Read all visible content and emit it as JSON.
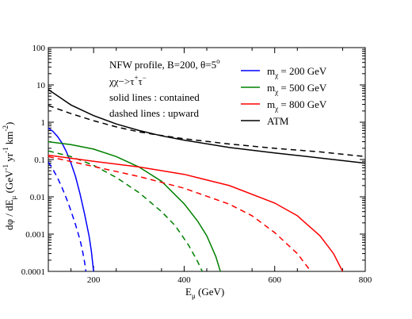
{
  "chart_data": {
    "type": "line",
    "title": "",
    "xlabel": {
      "main": "E",
      "sub": "μ",
      "tail": " (GeV)"
    },
    "ylabel": {
      "t1": "dφ / dE",
      "t2": "μ",
      "t3": " (GeV",
      "t4": "-1",
      "t5": " yr",
      "t6": "-1",
      "t7": " km",
      "t8": "-2",
      "t9": ")"
    },
    "xlim": [
      100,
      800
    ],
    "ylim": [
      0.0001,
      100
    ],
    "yscale": "log",
    "x_ticks": [
      {
        "value": 200,
        "label": "200"
      },
      {
        "value": 400,
        "label": "400"
      },
      {
        "value": 600,
        "label": "600"
      },
      {
        "value": 800,
        "label": "800"
      }
    ],
    "y_ticks": [
      {
        "value": 0.0001,
        "label": "0.0001"
      },
      {
        "value": 0.001,
        "label": "0.001"
      },
      {
        "value": 0.01,
        "label": "0.01"
      },
      {
        "value": 0.1,
        "label": "0.1"
      },
      {
        "value": 1,
        "label": "1"
      },
      {
        "value": 10,
        "label": "10"
      },
      {
        "value": 100,
        "label": "100"
      }
    ],
    "annotations": {
      "line1": "NFW profile, B=200, θ=5",
      "line1_sup": "o",
      "line2_base": "χχ−>τ",
      "line2_sup1": "+",
      "line2_mid": "τ",
      "line2_sup2": "−",
      "line3": "solid lines : contained",
      "line4": "dashed lines : upward"
    },
    "legend_position": "top-right",
    "legend": [
      {
        "pre": "m",
        "sub": "χ",
        "post": " = 200 GeV",
        "color": "#0000ff",
        "series_key": "m200"
      },
      {
        "pre": "m",
        "sub": "χ",
        "post": " = 500 GeV",
        "color": "#008000",
        "series_key": "m500"
      },
      {
        "pre": "m",
        "sub": "χ",
        "post": " = 800 GeV",
        "color": "#ff0000",
        "series_key": "m800"
      },
      {
        "pre": "ATM",
        "sub": "",
        "post": "",
        "color": "#000000",
        "series_key": "atm"
      }
    ],
    "series": [
      {
        "key": "m200",
        "style": "solid",
        "color": "#0000ff",
        "x": [
          100,
          110,
          120,
          130,
          140,
          150,
          160,
          170,
          180,
          190,
          195,
          200
        ],
        "y": [
          0.7,
          0.57,
          0.42,
          0.28,
          0.16,
          0.08,
          0.035,
          0.012,
          0.0035,
          0.0009,
          0.00035,
          0.0001
        ]
      },
      {
        "key": "m200",
        "style": "dashed",
        "color": "#0000ff",
        "x": [
          100,
          110,
          120,
          130,
          140,
          150,
          160,
          170,
          175,
          180,
          183
        ],
        "y": [
          0.085,
          0.055,
          0.033,
          0.018,
          0.009,
          0.0042,
          0.0018,
          0.0007,
          0.00038,
          0.00018,
          0.0001
        ]
      },
      {
        "key": "m500",
        "style": "solid",
        "color": "#008000",
        "x": [
          100,
          150,
          200,
          250,
          300,
          350,
          400,
          430,
          450,
          470,
          480
        ],
        "y": [
          0.3,
          0.25,
          0.19,
          0.12,
          0.063,
          0.026,
          0.0065,
          0.0022,
          0.0009,
          0.00025,
          0.0001
        ]
      },
      {
        "key": "m500",
        "style": "dashed",
        "color": "#008000",
        "x": [
          100,
          150,
          200,
          250,
          300,
          350,
          380,
          410,
          430,
          440
        ],
        "y": [
          0.17,
          0.12,
          0.07,
          0.033,
          0.013,
          0.004,
          0.0017,
          0.0005,
          0.00018,
          0.0001
        ]
      },
      {
        "key": "m800",
        "style": "solid",
        "color": "#ff0000",
        "x": [
          100,
          200,
          300,
          400,
          500,
          600,
          650,
          700,
          730,
          750
        ],
        "y": [
          0.13,
          0.09,
          0.063,
          0.04,
          0.02,
          0.0068,
          0.0031,
          0.0009,
          0.0003,
          0.0001
        ]
      },
      {
        "key": "m800",
        "style": "dashed",
        "color": "#ff0000",
        "x": [
          100,
          200,
          300,
          400,
          500,
          550,
          600,
          650,
          680
        ],
        "y": [
          0.12,
          0.065,
          0.035,
          0.017,
          0.0063,
          0.0031,
          0.0011,
          0.0003,
          0.0001
        ]
      },
      {
        "key": "atm",
        "style": "solid",
        "color": "#000000",
        "x": [
          100,
          150,
          200,
          250,
          300,
          350,
          400,
          500,
          600,
          700,
          800
        ],
        "y": [
          7.5,
          2.9,
          1.5,
          0.9,
          0.6,
          0.43,
          0.33,
          0.21,
          0.15,
          0.11,
          0.08
        ]
      },
      {
        "key": "atm",
        "style": "dashed",
        "color": "#000000",
        "x": [
          100,
          150,
          200,
          250,
          300,
          350,
          400,
          500,
          600,
          700,
          800
        ],
        "y": [
          2.8,
          1.7,
          1.1,
          0.75,
          0.55,
          0.44,
          0.36,
          0.26,
          0.2,
          0.16,
          0.12
        ]
      }
    ]
  }
}
